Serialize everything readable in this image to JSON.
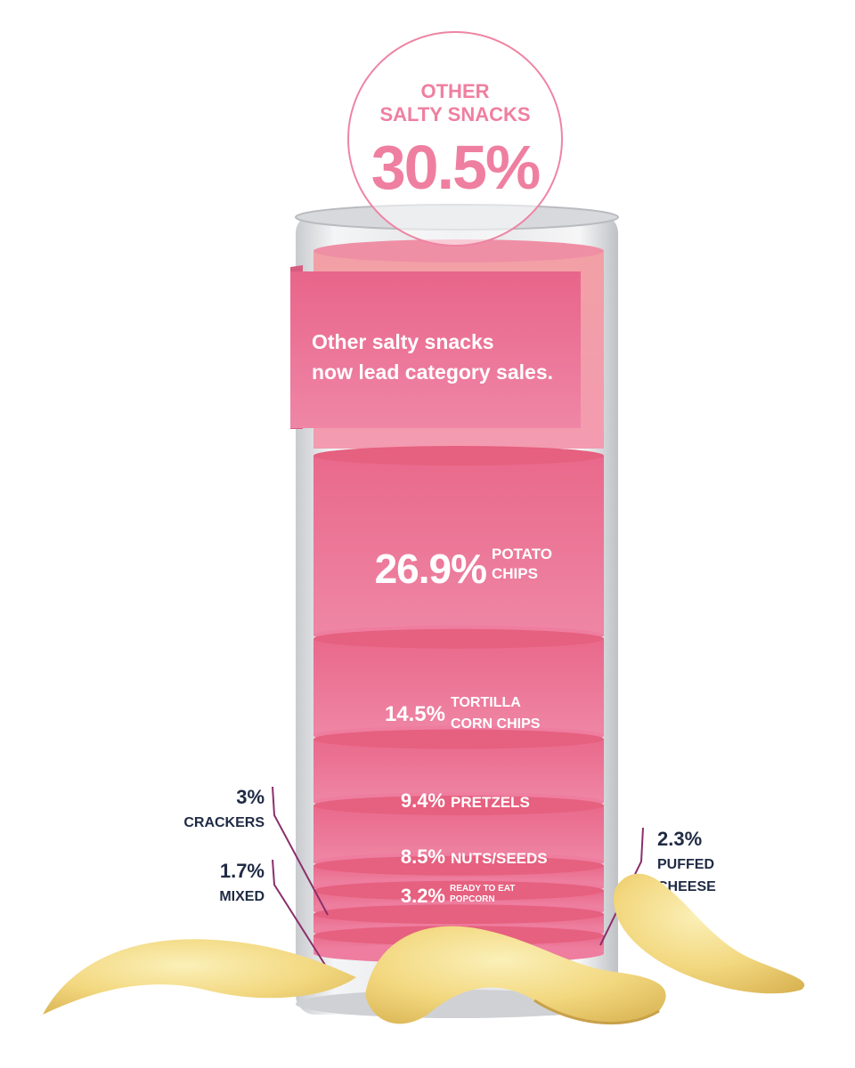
{
  "chart_data": {
    "type": "stacked-bar",
    "title": "OTHER SALTY SNACKS",
    "callout": "Other salty snacks now lead category sales.",
    "unit": "%",
    "segments": [
      {
        "name": "OTHER SALTY SNACKS",
        "value": 30.5,
        "label": "30.5%",
        "color": "#f09aa8"
      },
      {
        "name": "POTATO CHIPS",
        "value": 26.9,
        "label": "26.9%",
        "color": "#ea6f8f"
      },
      {
        "name": "TORTILLA CORN CHIPS",
        "value": 14.5,
        "label": "14.5%",
        "color": "#ea6f8f"
      },
      {
        "name": "PRETZELS",
        "value": 9.4,
        "label": "9.4%",
        "color": "#ea6f8f"
      },
      {
        "name": "NUTS/SEEDS",
        "value": 8.5,
        "label": "8.5%",
        "color": "#ea6f8f"
      },
      {
        "name": "READY TO EAT POPCORN",
        "value": 3.2,
        "label": "3.2%",
        "color": "#ea6f8f"
      },
      {
        "name": "CRACKERS",
        "value": 3.0,
        "label": "3%",
        "color": "#ea6f8f"
      },
      {
        "name": "PUFFED CHEESE",
        "value": 2.3,
        "label": "2.3%",
        "color": "#ea6f8f"
      },
      {
        "name": "MIXED",
        "value": 1.7,
        "label": "1.7%",
        "color": "#ea6f8f"
      }
    ],
    "labels": {
      "top_line1": "OTHER",
      "top_line2": "SALTY SNACKS",
      "top_value": "30.5%",
      "callout_line1": "Other salty snacks",
      "callout_line2": "now lead category sales.",
      "potato_value": "26.9%",
      "potato_line1": "POTATO",
      "potato_line2": "CHIPS",
      "tortilla_value": "14.5%",
      "tortilla_line1": "TORTILLA",
      "tortilla_line2": "CORN CHIPS",
      "pretzels_value": "9.4%",
      "pretzels_name": "PRETZELS",
      "nuts_value": "8.5%",
      "nuts_name": "NUTS/SEEDS",
      "popcorn_value": "3.2%",
      "popcorn_line1": "READY TO EAT",
      "popcorn_line2": "POPCORN",
      "crackers_value": "3%",
      "crackers_name": "CRACKERS",
      "mixed_value": "1.7%",
      "mixed_name": "MIXED",
      "puffed_value": "2.3%",
      "puffed_line1": "PUFFED",
      "puffed_line2": "CHEESE"
    },
    "colors": {
      "accent_pink": "#ef7fa0",
      "leader_line": "#8b2f6b",
      "annotation_text": "#1f2a44",
      "can_silver": "#e6e7ea"
    }
  }
}
